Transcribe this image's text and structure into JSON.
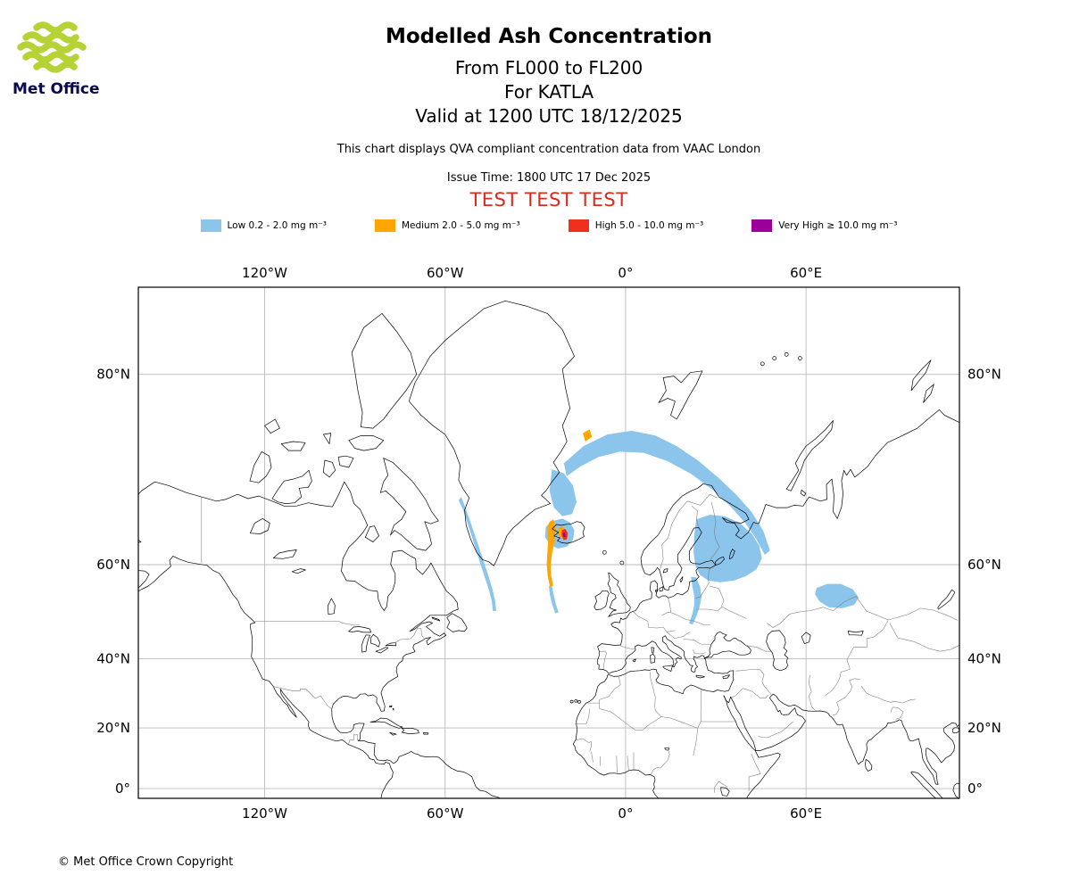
{
  "branding": {
    "logo_text": "Met Office",
    "logo_icon": "met-office-waves-icon",
    "logo_color": "#B5D334",
    "logo_text_color": "#0A0A50"
  },
  "header": {
    "title": "Modelled Ash Concentration",
    "subtitle_flight_levels": "From FL000 to FL200",
    "subtitle_volcano": "For KATLA",
    "subtitle_valid": "Valid at 1200 UTC 18/12/2025",
    "info_line": "This chart displays QVA compliant concentration data from VAAC London",
    "issue_line": "Issue Time: 1800 UTC 17 Dec 2025",
    "test_banner": "TEST TEST TEST"
  },
  "colors": {
    "test_text": "#D92B1E",
    "grid": "#BBBBBB",
    "coast": "#000000",
    "border": "#787878",
    "frame": "#000000"
  },
  "map": {
    "xticks": [
      {
        "label": "120°W",
        "lon": -120
      },
      {
        "label": "60°W",
        "lon": -60
      },
      {
        "label": "0°",
        "lon": 0
      },
      {
        "label": "60°E",
        "lon": 60
      }
    ],
    "yticks": [
      {
        "label": "80°N",
        "lat": 80
      },
      {
        "label": "60°N",
        "lat": 60
      },
      {
        "label": "40°N",
        "lat": 40
      },
      {
        "label": "20°N",
        "lat": 20
      },
      {
        "label": "0°",
        "lat": 0
      }
    ]
  },
  "chart_data": {
    "type": "filled-contour-map",
    "projection": "mercator",
    "lon_range": [
      -162,
      111
    ],
    "lat_range": [
      -3.3,
      84
    ],
    "levels": [
      {
        "key": "low",
        "label": "Low 0.2 - 2.0 mg m⁻³",
        "color": "#8CC5EC"
      },
      {
        "key": "medium",
        "label": "Medium 2.0 - 5.0 mg m⁻³",
        "color": "#FFA500"
      },
      {
        "key": "high",
        "label": "High 5.0 - 10.0 mg m⁻³",
        "color": "#F0301D"
      },
      {
        "key": "very_high",
        "label": "Very High ≥ 10.0 mg m⁻³",
        "color": "#9B009B"
      }
    ],
    "plumes": [
      {
        "level": "low",
        "points": [
          [
            -55.5,
            69.2
          ],
          [
            -54,
            68
          ],
          [
            -52.5,
            66.2
          ],
          [
            -51,
            64.2
          ],
          [
            -49.6,
            62.2
          ],
          [
            -48.2,
            60
          ],
          [
            -46.8,
            57.8
          ],
          [
            -45.4,
            55.4
          ],
          [
            -44.5,
            53.2
          ],
          [
            -44.1,
            51.2
          ],
          [
            -43,
            51.3
          ],
          [
            -43.4,
            53.4
          ],
          [
            -44.3,
            55.7
          ],
          [
            -45.6,
            58
          ],
          [
            -47,
            60.3
          ],
          [
            -48.5,
            62.5
          ],
          [
            -50,
            64.5
          ],
          [
            -51.6,
            66.5
          ],
          [
            -53.2,
            68.2
          ],
          [
            -54.6,
            69.6
          ]
        ]
      },
      {
        "level": "low",
        "points": [
          [
            -20.5,
            73.2
          ],
          [
            -14,
            74.8
          ],
          [
            -6,
            75.8
          ],
          [
            2,
            76.1
          ],
          [
            10,
            75.7
          ],
          [
            17,
            74.8
          ],
          [
            24,
            73.5
          ],
          [
            31,
            71.7
          ],
          [
            37,
            69.8
          ],
          [
            42,
            67.7
          ],
          [
            45.8,
            65.2
          ],
          [
            48,
            62.3
          ],
          [
            46.3,
            61.6
          ],
          [
            43.5,
            64
          ],
          [
            39.8,
            66.3
          ],
          [
            35,
            68.4
          ],
          [
            29,
            70.4
          ],
          [
            22,
            72.1
          ],
          [
            14,
            73.4
          ],
          [
            6,
            74.2
          ],
          [
            -2,
            74.3
          ],
          [
            -9,
            73.8
          ],
          [
            -15,
            72.9
          ],
          [
            -19.6,
            71.9
          ]
        ]
      },
      {
        "level": "low",
        "points": [
          [
            23.5,
            66.8
          ],
          [
            28,
            67.4
          ],
          [
            33,
            67.2
          ],
          [
            38,
            66.3
          ],
          [
            42,
            64.8
          ],
          [
            44.5,
            63
          ],
          [
            45.3,
            61
          ],
          [
            43.5,
            59.2
          ],
          [
            40,
            58
          ],
          [
            36,
            57.2
          ],
          [
            31.5,
            56.9
          ],
          [
            27.5,
            57.2
          ],
          [
            24.8,
            58.2
          ],
          [
            23.2,
            59.8
          ],
          [
            22.6,
            62
          ],
          [
            22.8,
            64.5
          ]
        ]
      },
      {
        "level": "low",
        "points": [
          [
            23.5,
            57.8
          ],
          [
            24.8,
            56
          ],
          [
            25.2,
            54
          ],
          [
            24.6,
            52
          ],
          [
            23.5,
            50
          ],
          [
            22.3,
            48.3
          ],
          [
            21.1,
            48.5
          ],
          [
            22.1,
            50.4
          ],
          [
            22.8,
            52.4
          ],
          [
            22.8,
            54.4
          ],
          [
            22.2,
            56.2
          ],
          [
            21.7,
            57.9
          ]
        ]
      },
      {
        "level": "low",
        "points": [
          [
            63.5,
            55.8
          ],
          [
            67,
            56.6
          ],
          [
            71.5,
            56.6
          ],
          [
            75.5,
            55.6
          ],
          [
            77.5,
            54
          ],
          [
            76,
            52.5
          ],
          [
            72,
            51.8
          ],
          [
            67.5,
            52
          ],
          [
            64.5,
            53.2
          ],
          [
            63,
            54.6
          ]
        ]
      },
      {
        "level": "low",
        "points": [
          [
            -24.5,
            72.6
          ],
          [
            -20.5,
            72.2
          ],
          [
            -17.5,
            70.9
          ],
          [
            -16.3,
            69
          ],
          [
            -17.8,
            67.5
          ],
          [
            -21,
            67.2
          ],
          [
            -23.8,
            68.3
          ],
          [
            -25.3,
            70.3
          ]
        ]
      },
      {
        "level": "low",
        "points": [
          [
            -26.5,
            65.8
          ],
          [
            -24,
            66.6
          ],
          [
            -21,
            66.9
          ],
          [
            -18.5,
            66.4
          ],
          [
            -17,
            65.3
          ],
          [
            -17.5,
            63.9
          ],
          [
            -19.5,
            62.9
          ],
          [
            -22.5,
            62.6
          ],
          [
            -25.2,
            63.2
          ],
          [
            -26.8,
            64.4
          ]
        ]
      },
      {
        "level": "low",
        "points": [
          [
            -24.6,
            56.4
          ],
          [
            -23.9,
            54.5
          ],
          [
            -23.2,
            52.6
          ],
          [
            -22.3,
            51
          ],
          [
            -23.4,
            50.7
          ],
          [
            -24.4,
            52.6
          ],
          [
            -25.2,
            54.6
          ],
          [
            -25.5,
            56.2
          ]
        ]
      },
      {
        "level": "medium",
        "points": [
          [
            -25.2,
            66.5
          ],
          [
            -24,
            66.8
          ],
          [
            -23.2,
            65.5
          ],
          [
            -23.6,
            63.8
          ],
          [
            -24.4,
            62
          ],
          [
            -24.9,
            60
          ],
          [
            -24.8,
            58.2
          ],
          [
            -24.1,
            56.3
          ],
          [
            -25.1,
            56
          ],
          [
            -25.9,
            58
          ],
          [
            -26.2,
            60
          ],
          [
            -26,
            62
          ],
          [
            -25.7,
            64
          ],
          [
            -26,
            65.9
          ]
        ]
      },
      {
        "level": "medium",
        "points": [
          [
            -22.3,
            65.6
          ],
          [
            -20.8,
            65.9
          ],
          [
            -20,
            65.2
          ],
          [
            -20.6,
            64.2
          ],
          [
            -21.9,
            64.3
          ],
          [
            -22.6,
            65
          ]
        ]
      },
      {
        "level": "medium",
        "points": [
          [
            -14.2,
            75.9
          ],
          [
            -12,
            76.2
          ],
          [
            -11.2,
            75.6
          ],
          [
            -13.4,
            75.2
          ]
        ]
      },
      {
        "level": "high",
        "points": [
          [
            -21.2,
            65.3
          ],
          [
            -20,
            65.5
          ],
          [
            -19.2,
            64.9
          ],
          [
            -19.5,
            64
          ],
          [
            -20.6,
            63.9
          ],
          [
            -21.3,
            64.6
          ]
        ]
      },
      {
        "level": "very_high",
        "points": [
          [
            -20.9,
            64.9
          ],
          [
            -20.2,
            65
          ],
          [
            -19.9,
            64.4
          ],
          [
            -20.6,
            64.3
          ]
        ]
      }
    ]
  },
  "footer": {
    "copyright": "© Met Office Crown Copyright"
  }
}
